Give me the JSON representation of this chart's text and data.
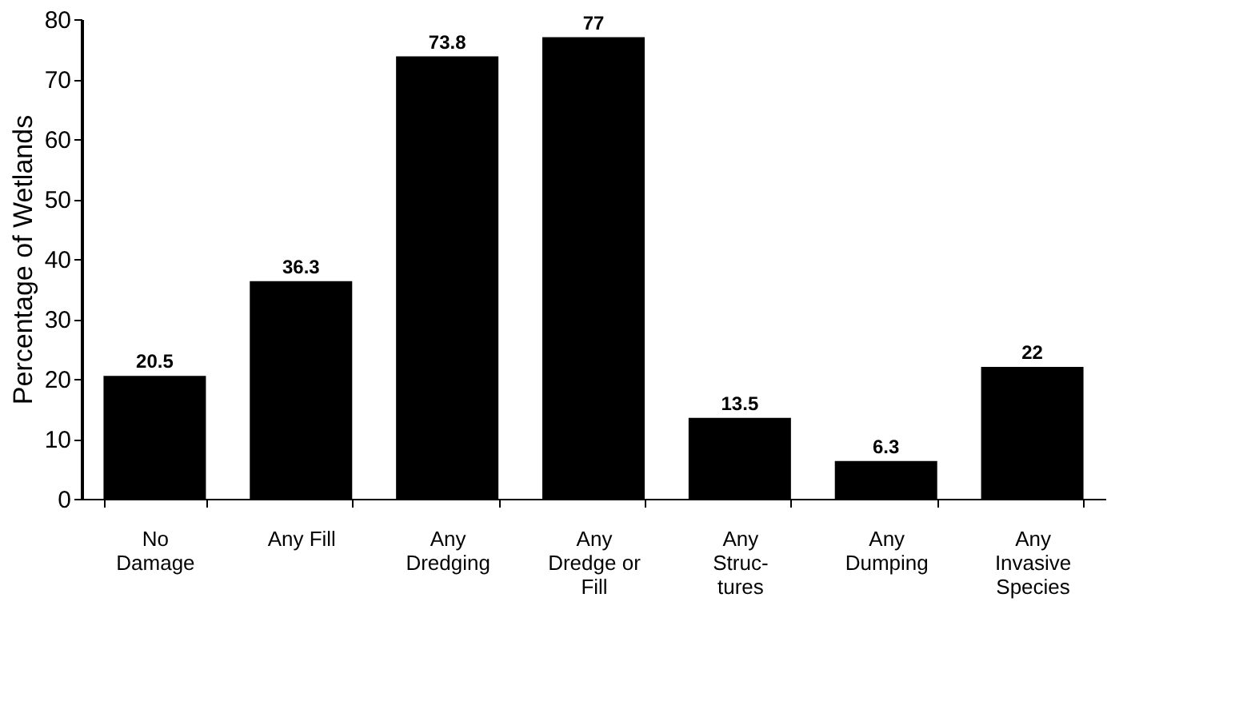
{
  "chart_data": {
    "type": "bar",
    "ylabel": "Percentage of Wetlands",
    "categories": [
      "No\nDamage",
      "Any Fill",
      "Any\nDredging",
      "Any\nDredge or\nFill",
      "Any\nStruc-\ntures",
      "Any\nDumping",
      "Any\nInvasive\nSpecies"
    ],
    "values": [
      20.5,
      36.3,
      73.8,
      77,
      13.5,
      6.3,
      22
    ],
    "color": "#000000",
    "ylim": [
      0,
      80
    ],
    "yticks": [
      0,
      10,
      20,
      30,
      40,
      50,
      60,
      70,
      80
    ],
    "grid": false,
    "data_labels": true
  }
}
